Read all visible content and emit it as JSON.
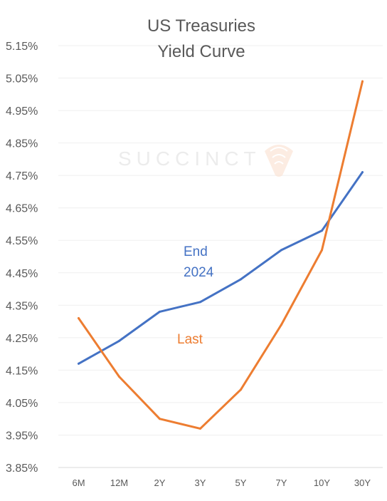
{
  "chart_data": {
    "type": "line",
    "title": [
      "US Treasuries",
      "Yield Curve"
    ],
    "xlabel": "",
    "ylabel": "",
    "categories": [
      "6M",
      "12M",
      "2Y",
      "3Y",
      "5Y",
      "7Y",
      "10Y",
      "30Y"
    ],
    "ylim": [
      3.85,
      5.15
    ],
    "ytick_values": [
      3.85,
      3.95,
      4.05,
      4.15,
      4.25,
      4.35,
      4.45,
      4.55,
      4.65,
      4.75,
      4.85,
      4.95,
      5.05,
      5.15
    ],
    "ytick_labels": [
      "3.85%",
      "3.95%",
      "4.05%",
      "4.15%",
      "4.25%",
      "4.35%",
      "4.45%",
      "4.55%",
      "4.65%",
      "4.75%",
      "4.85%",
      "4.95%",
      "5.05%",
      "5.15%"
    ],
    "grid": true,
    "legend": "inline labels",
    "series": [
      {
        "name": "End 2024",
        "label_lines": [
          "End",
          "2024"
        ],
        "color": "#4472c4",
        "values": [
          4.17,
          4.24,
          4.33,
          4.36,
          4.43,
          4.52,
          4.58,
          4.76
        ]
      },
      {
        "name": "Last",
        "label_lines": [
          "Last"
        ],
        "color": "#ed7d31",
        "values": [
          4.31,
          4.13,
          4.0,
          3.97,
          4.09,
          4.29,
          4.52,
          5.04
        ]
      }
    ]
  },
  "watermark": {
    "text": "SUCCINCT",
    "icon": "shell-logo-icon"
  }
}
